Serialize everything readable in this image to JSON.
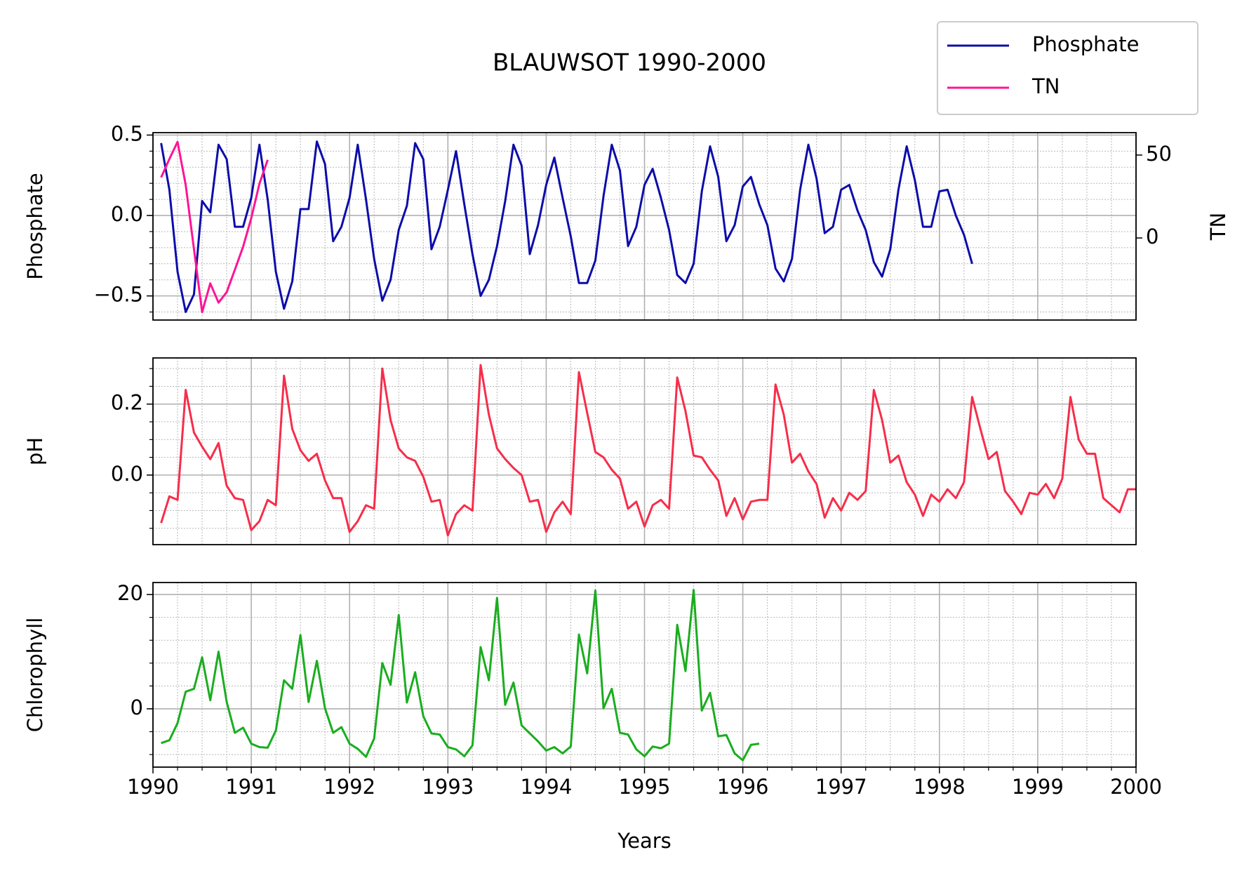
{
  "chart_data": [
    {
      "type": "line",
      "title": "BLAUWSOT 1990-2000",
      "ylabel": "Phosphate",
      "y2label": "TN",
      "grid": true,
      "legend": "upper right",
      "ylim": [
        -0.65,
        0.515
      ],
      "yticks": [
        {
          "value": -0.5,
          "label": "−0.5"
        },
        {
          "value": 0,
          "label": "0.0"
        },
        {
          "value": 0.5,
          "label": "0.5"
        }
      ],
      "y2lim": [
        -49.5,
        63.5
      ],
      "y2ticks": [
        0,
        50
      ],
      "series": [
        {
          "name": "Phosphate",
          "color": "#0c0caa",
          "x": [
            1990.083,
            1990.167,
            1990.25,
            1990.333,
            1990.417,
            1990.5,
            1990.583,
            1990.667,
            1990.75,
            1990.833,
            1990.917,
            1991,
            1991.083,
            1991.167,
            1991.25,
            1991.333,
            1991.417,
            1991.5,
            1991.583,
            1991.667,
            1991.75,
            1991.833,
            1991.917,
            1992,
            1992.083,
            1992.167,
            1992.25,
            1992.333,
            1992.417,
            1992.5,
            1992.583,
            1992.667,
            1992.75,
            1992.833,
            1992.917,
            1993,
            1993.083,
            1993.167,
            1993.25,
            1993.333,
            1993.417,
            1993.5,
            1993.583,
            1993.667,
            1993.75,
            1993.833,
            1993.917,
            1994,
            1994.083,
            1994.167,
            1994.25,
            1994.333,
            1994.417,
            1994.5,
            1994.583,
            1994.667,
            1994.75,
            1994.833,
            1994.917,
            1995,
            1995.083,
            1995.167,
            1995.25,
            1995.333,
            1995.417,
            1995.5,
            1995.583,
            1995.667,
            1995.75,
            1995.833,
            1995.917,
            1996,
            1996.083,
            1996.167,
            1996.25,
            1996.333,
            1996.417,
            1996.5,
            1996.583,
            1996.667,
            1996.75,
            1996.833,
            1996.917,
            1997,
            1997.083,
            1997.167,
            1997.25,
            1997.333,
            1997.417,
            1997.5,
            1997.583,
            1997.667,
            1997.75,
            1997.833,
            1997.917,
            1998,
            1998.083,
            1998.167,
            1998.25,
            1998.333
          ],
          "values": [
            0.45,
            0.16,
            -0.35,
            -0.6,
            -0.49,
            0.09,
            0.02,
            0.44,
            0.35,
            -0.07,
            -0.07,
            0.11,
            0.44,
            0.1,
            -0.35,
            -0.58,
            -0.41,
            0.04,
            0.04,
            0.46,
            0.32,
            -0.16,
            -0.07,
            0.11,
            0.44,
            0.1,
            -0.27,
            -0.53,
            -0.4,
            -0.09,
            0.06,
            0.45,
            0.35,
            -0.21,
            -0.07,
            0.16,
            0.4,
            0.07,
            -0.24,
            -0.5,
            -0.4,
            -0.19,
            0.09,
            0.44,
            0.31,
            -0.24,
            -0.06,
            0.19,
            0.36,
            0.11,
            -0.13,
            -0.42,
            -0.42,
            -0.28,
            0.12,
            0.44,
            0.28,
            -0.19,
            -0.07,
            0.19,
            0.29,
            0.11,
            -0.09,
            -0.37,
            -0.42,
            -0.3,
            0.15,
            0.43,
            0.24,
            -0.16,
            -0.06,
            0.18,
            0.24,
            0.07,
            -0.06,
            -0.33,
            -0.41,
            -0.27,
            0.16,
            0.44,
            0.23,
            -0.11,
            -0.07,
            0.16,
            0.19,
            0.03,
            -0.09,
            -0.29,
            -0.38,
            -0.21,
            0.16,
            0.43,
            0.22,
            -0.07,
            -0.07,
            0.15,
            0.16,
            0.0,
            -0.12,
            -0.3
          ]
        },
        {
          "name": "TN",
          "color": "#ff1493",
          "axis": "y2",
          "x": [
            1990.083,
            1990.167,
            1990.25,
            1990.333,
            1990.417,
            1990.5,
            1990.583,
            1990.667,
            1990.75,
            1990.833,
            1990.917,
            1991,
            1991.083,
            1991.167
          ],
          "values": [
            36.5,
            47.6,
            58,
            32,
            -6.7,
            -44.7,
            -27.4,
            -39,
            -32.7,
            -19.2,
            -5.3,
            12,
            32.7,
            47.1
          ]
        }
      ]
    },
    {
      "type": "line",
      "ylabel": "pH",
      "grid": true,
      "ylim": [
        -0.196,
        0.33
      ],
      "yticks": [
        {
          "value": 0,
          "label": "0.0"
        },
        {
          "value": 0.2,
          "label": "0.2"
        }
      ],
      "series": [
        {
          "name": "pH",
          "color": "#f72d4a",
          "x": [
            1990.083,
            1990.167,
            1990.25,
            1990.333,
            1990.417,
            1990.5,
            1990.583,
            1990.667,
            1990.75,
            1990.833,
            1990.917,
            1991,
            1991.083,
            1991.167,
            1991.25,
            1991.333,
            1991.417,
            1991.5,
            1991.583,
            1991.667,
            1991.75,
            1991.833,
            1991.917,
            1992,
            1992.083,
            1992.167,
            1992.25,
            1992.333,
            1992.417,
            1992.5,
            1992.583,
            1992.667,
            1992.75,
            1992.833,
            1992.917,
            1993,
            1993.083,
            1993.167,
            1993.25,
            1993.333,
            1993.417,
            1993.5,
            1993.583,
            1993.667,
            1993.75,
            1993.833,
            1993.917,
            1994,
            1994.083,
            1994.167,
            1994.25,
            1994.333,
            1994.417,
            1994.5,
            1994.583,
            1994.667,
            1994.75,
            1994.833,
            1994.917,
            1995,
            1995.083,
            1995.167,
            1995.25,
            1995.333,
            1995.417,
            1995.5,
            1995.583,
            1995.667,
            1995.75,
            1995.833,
            1995.917,
            1996,
            1996.083,
            1996.167,
            1996.25,
            1996.333,
            1996.417,
            1996.5,
            1996.583,
            1996.667,
            1996.75,
            1996.833,
            1996.917,
            1997,
            1997.083,
            1997.167,
            1997.25,
            1997.333,
            1997.417,
            1997.5,
            1997.583,
            1997.667,
            1997.75,
            1997.833,
            1997.917,
            1998,
            1998.083,
            1998.167,
            1998.25,
            1998.333,
            1998.417,
            1998.5,
            1998.583,
            1998.667,
            1998.75,
            1998.833,
            1998.917,
            1999,
            1999.083,
            1999.167,
            1999.25,
            1999.333,
            1999.417,
            1999.5,
            1999.583,
            1999.667,
            1999.75,
            1999.833,
            1999.917,
            2000
          ],
          "values": [
            -0.135,
            -0.06,
            -0.07,
            0.24,
            0.12,
            0.08,
            0.045,
            0.09,
            -0.03,
            -0.065,
            -0.07,
            -0.155,
            -0.13,
            -0.07,
            -0.085,
            0.28,
            0.13,
            0.07,
            0.04,
            0.06,
            -0.015,
            -0.065,
            -0.065,
            -0.16,
            -0.13,
            -0.085,
            -0.095,
            0.3,
            0.155,
            0.075,
            0.05,
            0.04,
            -0.005,
            -0.075,
            -0.07,
            -0.17,
            -0.11,
            -0.085,
            -0.1,
            0.31,
            0.17,
            0.075,
            0.045,
            0.02,
            0.0,
            -0.075,
            -0.07,
            -0.16,
            -0.105,
            -0.075,
            -0.11,
            0.29,
            0.175,
            0.065,
            0.05,
            0.015,
            -0.01,
            -0.095,
            -0.075,
            -0.145,
            -0.085,
            -0.07,
            -0.095,
            0.275,
            0.18,
            0.055,
            0.05,
            0.015,
            -0.015,
            -0.115,
            -0.065,
            -0.125,
            -0.075,
            -0.07,
            -0.07,
            0.255,
            0.17,
            0.035,
            0.06,
            0.01,
            -0.025,
            -0.12,
            -0.065,
            -0.1,
            -0.05,
            -0.07,
            -0.045,
            0.24,
            0.155,
            0.035,
            0.055,
            -0.02,
            -0.055,
            -0.115,
            -0.055,
            -0.075,
            -0.04,
            -0.065,
            -0.02,
            0.22,
            0.13,
            0.045,
            0.065,
            -0.045,
            -0.075,
            -0.11,
            -0.05,
            -0.055,
            -0.025,
            -0.065,
            -0.01,
            0.22,
            0.1,
            0.06,
            0.06,
            -0.065,
            -0.085,
            -0.105,
            -0.04,
            -0.04
          ]
        }
      ]
    },
    {
      "type": "line",
      "ylabel": "Chlorophyll",
      "xlabel": "Years",
      "grid": true,
      "xlim": [
        1990,
        2000
      ],
      "xticks": [
        1990,
        1991,
        1992,
        1993,
        1994,
        1995,
        1996,
        1997,
        1998,
        1999,
        2000
      ],
      "ylim": [
        -10.2,
        22.1
      ],
      "yticks": [
        0,
        20
      ],
      "series": [
        {
          "name": "Chlorophyll",
          "color": "#1aad1f",
          "x": [
            1990.083,
            1990.167,
            1990.25,
            1990.333,
            1990.417,
            1990.5,
            1990.583,
            1990.667,
            1990.75,
            1990.833,
            1990.917,
            1991,
            1991.083,
            1991.167,
            1991.25,
            1991.333,
            1991.417,
            1991.5,
            1991.583,
            1991.667,
            1991.75,
            1991.833,
            1991.917,
            1992,
            1992.083,
            1992.167,
            1992.25,
            1992.333,
            1992.417,
            1992.5,
            1992.583,
            1992.667,
            1992.75,
            1992.833,
            1992.917,
            1993,
            1993.083,
            1993.167,
            1993.25,
            1993.333,
            1993.417,
            1993.5,
            1993.583,
            1993.667,
            1993.75,
            1993.833,
            1993.917,
            1994,
            1994.083,
            1994.167,
            1994.25,
            1994.333,
            1994.417,
            1994.5,
            1994.583,
            1994.667,
            1994.75,
            1994.833,
            1994.917,
            1995,
            1995.083,
            1995.167,
            1995.25,
            1995.333,
            1995.417,
            1995.5,
            1995.583,
            1995.667,
            1995.75,
            1995.833,
            1995.917,
            1996,
            1996.083,
            1996.167
          ],
          "values": [
            -6,
            -5.5,
            -2.5,
            3,
            3.5,
            9,
            1.5,
            10,
            1.2,
            -4.2,
            -3.3,
            -6.1,
            -6.7,
            -6.8,
            -3.8,
            5,
            3.5,
            12.9,
            1.2,
            8.4,
            0.1,
            -4.2,
            -3.2,
            -6.1,
            -7,
            -8.4,
            -5.2,
            8,
            4.2,
            16.4,
            1.1,
            6.4,
            -1.3,
            -4.3,
            -4.5,
            -6.7,
            -7.1,
            -8.3,
            -6.4,
            10.8,
            5,
            19.4,
            0.7,
            4.6,
            -2.9,
            -4.3,
            -5.7,
            -7.3,
            -6.7,
            -7.8,
            -6.6,
            13,
            6.2,
            20.7,
            0.1,
            3.5,
            -4.2,
            -4.5,
            -7.1,
            -8.3,
            -6.6,
            -6.9,
            -6.1,
            14.7,
            6.6,
            20.8,
            -0.3,
            2.8,
            -4.8,
            -4.6,
            -7.8,
            -9,
            -6.3,
            -6.1
          ]
        }
      ]
    }
  ]
}
